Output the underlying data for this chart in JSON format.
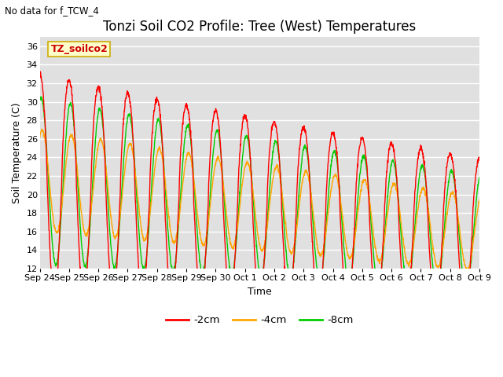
{
  "title": "Tonzi Soil CO2 Profile: Tree (West) Temperatures",
  "subtitle": "No data for f_TCW_4",
  "watermark": "TZ_soilco2",
  "ylabel": "Soil Temperature (C)",
  "xlabel": "Time",
  "ylim": [
    12,
    37
  ],
  "yticks": [
    12,
    14,
    16,
    18,
    20,
    22,
    24,
    26,
    28,
    30,
    32,
    34,
    36
  ],
  "xtick_labels": [
    "Sep 24",
    "Sep 25",
    "Sep 26",
    "Sep 27",
    "Sep 28",
    "Sep 29",
    "Sep 30",
    "Oct 1",
    "Oct 2",
    "Oct 3",
    "Oct 4",
    "Oct 5",
    "Oct 6",
    "Oct 7",
    "Oct 8",
    "Oct 9"
  ],
  "colors": {
    "2cm": "#ff0000",
    "4cm": "#ffa500",
    "8cm": "#00cc00"
  },
  "legend_labels": [
    "-2cm",
    "-4cm",
    "-8cm"
  ],
  "bg_color": "#e0e0e0",
  "figsize": [
    6.4,
    4.8
  ],
  "dpi": 100,
  "title_fontsize": 12,
  "axis_fontsize": 9,
  "tick_fontsize": 8
}
